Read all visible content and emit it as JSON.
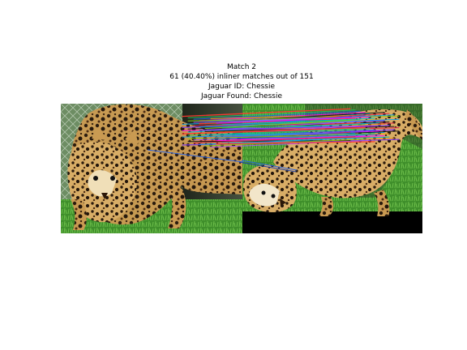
{
  "figure": {
    "title_lines": [
      "Match 2",
      "61 (40.40%) inliner matches out of 151",
      "Jaguar ID: Chessie",
      "Jaguar Found: Chessie"
    ]
  },
  "match_lines": {
    "count": 61,
    "palette": [
      "#ff3b30",
      "#22c55e",
      "#2563eb",
      "#ff00ff",
      "#00bcd4",
      "#f59e0b",
      "#7c3aed",
      "#111111",
      "#e11d48",
      "#0ea5e9",
      "#84cc16",
      "#a855f7"
    ]
  },
  "colors": {
    "background": "#ffffff",
    "title_text": "#000000",
    "grass": "#3f8f2b",
    "padding_black": "#000000"
  }
}
